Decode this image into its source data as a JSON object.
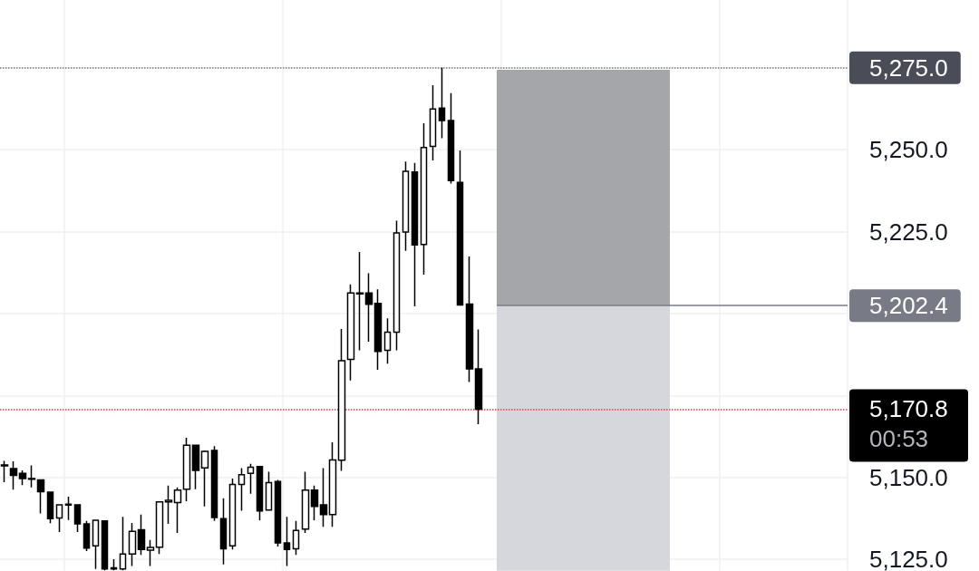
{
  "chart_data": {
    "type": "candlestick",
    "color": "#000000",
    "categories": [
      null,
      null,
      null,
      null,
      null,
      null,
      null,
      null,
      null,
      null,
      null,
      null,
      null,
      null,
      null,
      null,
      null,
      null,
      null,
      null,
      null,
      null,
      null,
      null,
      null,
      null,
      null,
      null,
      null,
      null,
      null,
      null,
      null,
      null,
      null,
      null,
      null,
      null,
      null,
      null,
      null,
      null,
      null,
      null,
      null,
      null,
      null,
      null,
      null,
      null,
      null,
      null,
      null,
      null,
      null,
      null,
      null,
      null,
      null,
      null,
      null,
      null,
      null,
      null,
      null,
      null,
      null,
      null,
      null,
      null,
      null,
      null,
      null,
      null,
      null,
      null,
      null,
      null,
      null,
      null,
      null,
      null,
      null,
      null,
      null,
      null,
      null,
      null,
      null,
      null,
      null,
      null,
      null
    ],
    "ohlc": [
      [
        5153.5,
        5155,
        5148.5,
        5153.8
      ],
      [
        5152.7,
        5154.9,
        5146.2,
        5150.6
      ],
      [
        5151.2,
        5152.1,
        5147.6,
        5149.6
      ],
      [
        5149.6,
        5153.6,
        5146.9,
        5149.4
      ],
      [
        5149.2,
        5149.4,
        5139,
        5145.6
      ],
      [
        5145.5,
        5145.6,
        5136,
        5137.4
      ],
      [
        5137.6,
        5141.6,
        5133.3,
        5141.6
      ],
      [
        5141.8,
        5144.1,
        5137,
        5141.5
      ],
      [
        5141.6,
        5141.6,
        5133.3,
        5135.8
      ],
      [
        5135.8,
        5136.7,
        5127.5,
        5128.4
      ],
      [
        5129.1,
        5136.9,
        5122,
        5136.9
      ],
      [
        5136.7,
        5136.7,
        5121.6,
        5122
      ],
      [
        5122.4,
        5125,
        5121.6,
        5122
      ],
      [
        5122,
        5137.9,
        5121.6,
        5126.6
      ],
      [
        5126.6,
        5136.1,
        5122.9,
        5133.5
      ],
      [
        5134,
        5138.6,
        5126.3,
        5128
      ],
      [
        5127.8,
        5130.9,
        5122.9,
        5128.6
      ],
      [
        5128.7,
        5142.5,
        5126.6,
        5142.5
      ],
      [
        5142.5,
        5147.5,
        5135.8,
        5143
      ],
      [
        5142.3,
        5146.9,
        5133,
        5146.1
      ],
      [
        5146.4,
        5162.1,
        5142.7,
        5159.8
      ],
      [
        5159.8,
        5159.8,
        5146.4,
        5152.1
      ],
      [
        5152.9,
        5158.2,
        5141.1,
        5157.9
      ],
      [
        5158.2,
        5159.5,
        5136.7,
        5137.7
      ],
      [
        5137.4,
        5143.6,
        5123.4,
        5128.2
      ],
      [
        5129.1,
        5149.6,
        5128,
        5147.8
      ],
      [
        5147.8,
        5152.8,
        5139.8,
        5150.8
      ],
      [
        5151.2,
        5154.1,
        5145,
        5153.1
      ],
      [
        5153.3,
        5153.3,
        5136.9,
        5139.7
      ],
      [
        5140,
        5151.7,
        5140,
        5148.4
      ],
      [
        5148.7,
        5149.2,
        5128.9,
        5130
      ],
      [
        5130,
        5137.9,
        5122.9,
        5128
      ],
      [
        5128.2,
        5136.7,
        5126.3,
        5133.8
      ],
      [
        5134.2,
        5151.7,
        5133,
        5146.1
      ],
      [
        5146.1,
        5147.5,
        5136.9,
        5141.1
      ],
      [
        5141.6,
        5152.8,
        5134.9,
        5138.6
      ],
      [
        5138.6,
        5160.7,
        5134.9,
        5155.3
      ],
      [
        5155.2,
        5195.3,
        5152,
        5185.6
      ],
      [
        5186,
        5208.9,
        5179.6,
        5206.3
      ],
      [
        5206,
        5218.8,
        5188.8,
        5206.3
      ],
      [
        5206.3,
        5212.3,
        5191.4,
        5202.8
      ],
      [
        5203.1,
        5207.4,
        5182.8,
        5188.4
      ],
      [
        5188.8,
        5198.5,
        5184.7,
        5194.3
      ],
      [
        5194.3,
        5228.3,
        5188.8,
        5224.6
      ],
      [
        5224.9,
        5246.4,
        5219.1,
        5243.4
      ],
      [
        5243.2,
        5246,
        5202.2,
        5220.9
      ],
      [
        5221.1,
        5258.1,
        5211.9,
        5250.7
      ],
      [
        5251,
        5269.7,
        5246.7,
        5262.4
      ],
      [
        5262.7,
        5275,
        5253.5,
        5258.9
      ],
      [
        5258.9,
        5267.3,
        5239.7,
        5240.6
      ],
      [
        5240,
        5249.8,
        5202.6,
        5202.6
      ],
      [
        5202.9,
        5217.4,
        5179.1,
        5183.1
      ],
      [
        5183.1,
        5195.1,
        5166.2,
        5170.8
      ],
      null,
      null,
      null,
      null,
      null,
      null,
      null,
      null,
      null,
      null,
      null,
      null,
      null,
      null,
      null,
      null,
      null,
      null,
      null,
      null,
      null,
      null,
      null,
      null,
      null,
      null,
      null,
      null,
      null,
      null,
      null,
      null,
      null,
      null,
      null,
      null,
      null,
      null,
      null,
      null
    ],
    "ylim": [
      5121.5,
      5295.7
    ],
    "yticks": [
      {
        "value": 5125,
        "label": "5,125.0"
      },
      {
        "value": 5150,
        "label": "5,150.0"
      },
      {
        "value": 5175,
        "label": null
      },
      {
        "value": 5200,
        "label": null
      },
      {
        "value": 5225,
        "label": "5,225.0"
      },
      {
        "value": 5250,
        "label": "5,250.0"
      },
      {
        "value": 5275,
        "label": null
      }
    ],
    "tick_labels": "y",
    "grid": true,
    "ref_lines": [
      {
        "axis": "y",
        "value": 5275,
        "label": "5,275.0",
        "color": "#787b86",
        "line_style": "dotted"
      },
      {
        "axis": "y",
        "value": 5202.4,
        "label": "5,202.4",
        "color": "#787b86",
        "line_style": "solid"
      },
      {
        "axis": "y",
        "value": 5170.8,
        "label": "5,170.8",
        "color": "#f23645",
        "line_style": "dotted"
      }
    ],
    "bands": [
      {
        "axis": "y",
        "from": 5202.4,
        "to": 5274.4,
        "label": null,
        "color": "#a5a6aa"
      },
      {
        "axis": "y",
        "from": 5121.5,
        "to": 5202.4,
        "label": null,
        "color": "#d6d7dc"
      }
    ],
    "annotations": [
      "00:53"
    ]
  }
}
